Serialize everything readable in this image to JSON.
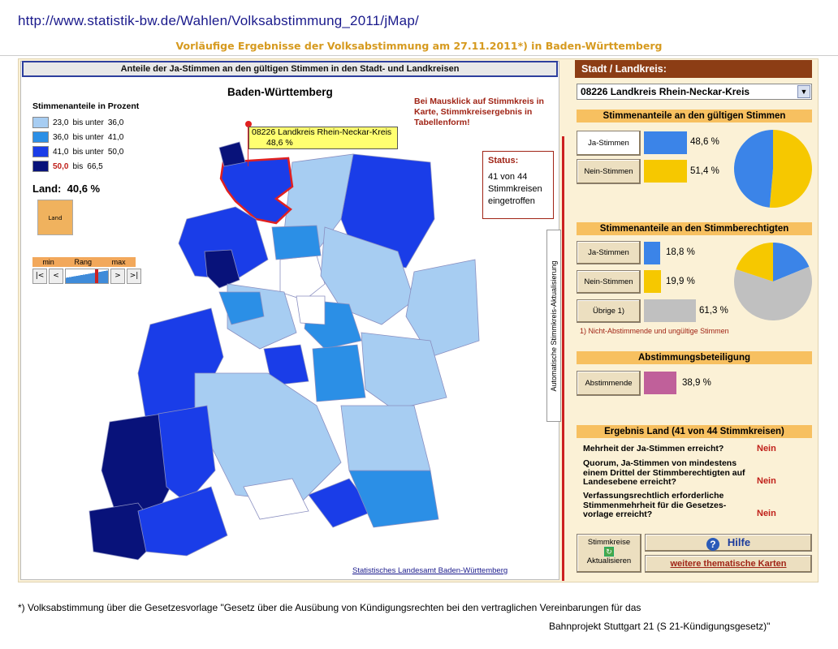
{
  "url": "http://www.statistik-bw.de/Wahlen/Volksabstimmung_2011/jMap/",
  "subtitle": "Vorläufige Ergebnisse der Volksabstimmung am 27.11.2011*) in Baden-Württemberg",
  "left": {
    "header": "Anteile der Ja-Stimmen an den gültigen Stimmen in den Stadt- und Landkreisen",
    "map_title": "Baden-Württemberg",
    "legend_title": "Stimmenanteile in Prozent",
    "legend": [
      {
        "from": "23,0",
        "word": "bis unter",
        "to": "36,0",
        "color": "#a7cdf2"
      },
      {
        "from": "36,0",
        "word": "bis unter",
        "to": "41,0",
        "color": "#2b8fe6"
      },
      {
        "from": "41,0",
        "word": "bis unter",
        "to": "50,0",
        "color": "#1a3de8"
      },
      {
        "from": "50,0",
        "word": "bis",
        "to": "66,5",
        "color": "#08127a"
      }
    ],
    "land_label": "Land:",
    "land_value": "40,6 %",
    "land_icon": "Land",
    "rang": {
      "min": "min",
      "label": "Rang",
      "max": "max",
      "first": "|<",
      "prev": "<",
      "next": ">",
      "last": ">|"
    },
    "hint": "Bei Mausklick auf Stimmkreis in Karte, Stimmkreisergebnis in Tabellenform!",
    "status_title": "Status:",
    "status_text": "41 von 44 Stimmkreisen eingetroffen",
    "auto_label": "Automatische Stimmkreis-Aktualisierung",
    "tooltip_name": "08226 Landkreis Rhein-Neckar-Kreis",
    "tooltip_value": "48,6 %",
    "source_link": "Statistisches Landesamt Baden-Württemberg"
  },
  "right": {
    "head": "Stadt / Landkreis:",
    "selected": "08226 Landkreis Rhein-Neckar-Kreis",
    "sec1": "Stimmenanteile an den gültigen Stimmen",
    "ja_label": "Ja-Stimmen",
    "nein_label": "Nein-Stimmen",
    "ja_valid": "48,6 %",
    "nein_valid": "51,4 %",
    "sec2": "Stimmenanteile an den Stimmberechtigten",
    "ja_elig": "18,8 %",
    "nein_elig": "19,9 %",
    "uebrige_label": "Übrige 1)",
    "uebrige": "61,3 %",
    "note": "1) Nicht-Abstimmende und ungültige Stimmen",
    "sec3": "Abstimmungsbeteiligung",
    "abst_label": "Abstimmende",
    "abst": "38,9 %",
    "erg_head": "Ergebnis Land  (41 von 44 Stimmkreisen)",
    "q1": "Mehrheit der Ja-Stimmen erreicht?",
    "a1": "Nein",
    "q2": "Quorum, Ja-Stimmen von mindestens einem Drittel der Stimmberechtigten auf Landesebene erreicht?",
    "a2": "Nein",
    "q3": "Verfassungsrechtlich erforderliche Stimmenmehrheit für die Gesetzes-vorlage erreicht?",
    "a3": "Nein",
    "refresh_top": "Stimmkreise",
    "refresh_bottom": "Aktualisieren",
    "hilfe": "Hilfe",
    "weitere": "weitere thematische Karten"
  },
  "footnote1": "*) Volksabstimmung über die Gesetzesvorlage \"Gesetz über die Ausübung von Kündigungsrechten bei den vertraglichen Vereinbarungen für das",
  "footnote2": "Bahnprojekt Stuttgart 21 (S 21-Kündigungsgesetz)\"",
  "colors": {
    "ja": "#3b84e8",
    "nein": "#f6c800",
    "uebrige": "#c0c0c0",
    "abst": "#c0609a",
    "accent": "#8c3d15"
  },
  "chart_data": [
    {
      "type": "pie",
      "labels": [
        "Ja-Stimmen",
        "Nein-Stimmen"
      ],
      "values": [
        48.6,
        51.4
      ]
    },
    {
      "type": "pie",
      "labels": [
        "Ja-Stimmen",
        "Nein-Stimmen",
        "Übrige 1)"
      ],
      "values": [
        18.8,
        19.9,
        61.3
      ]
    }
  ]
}
